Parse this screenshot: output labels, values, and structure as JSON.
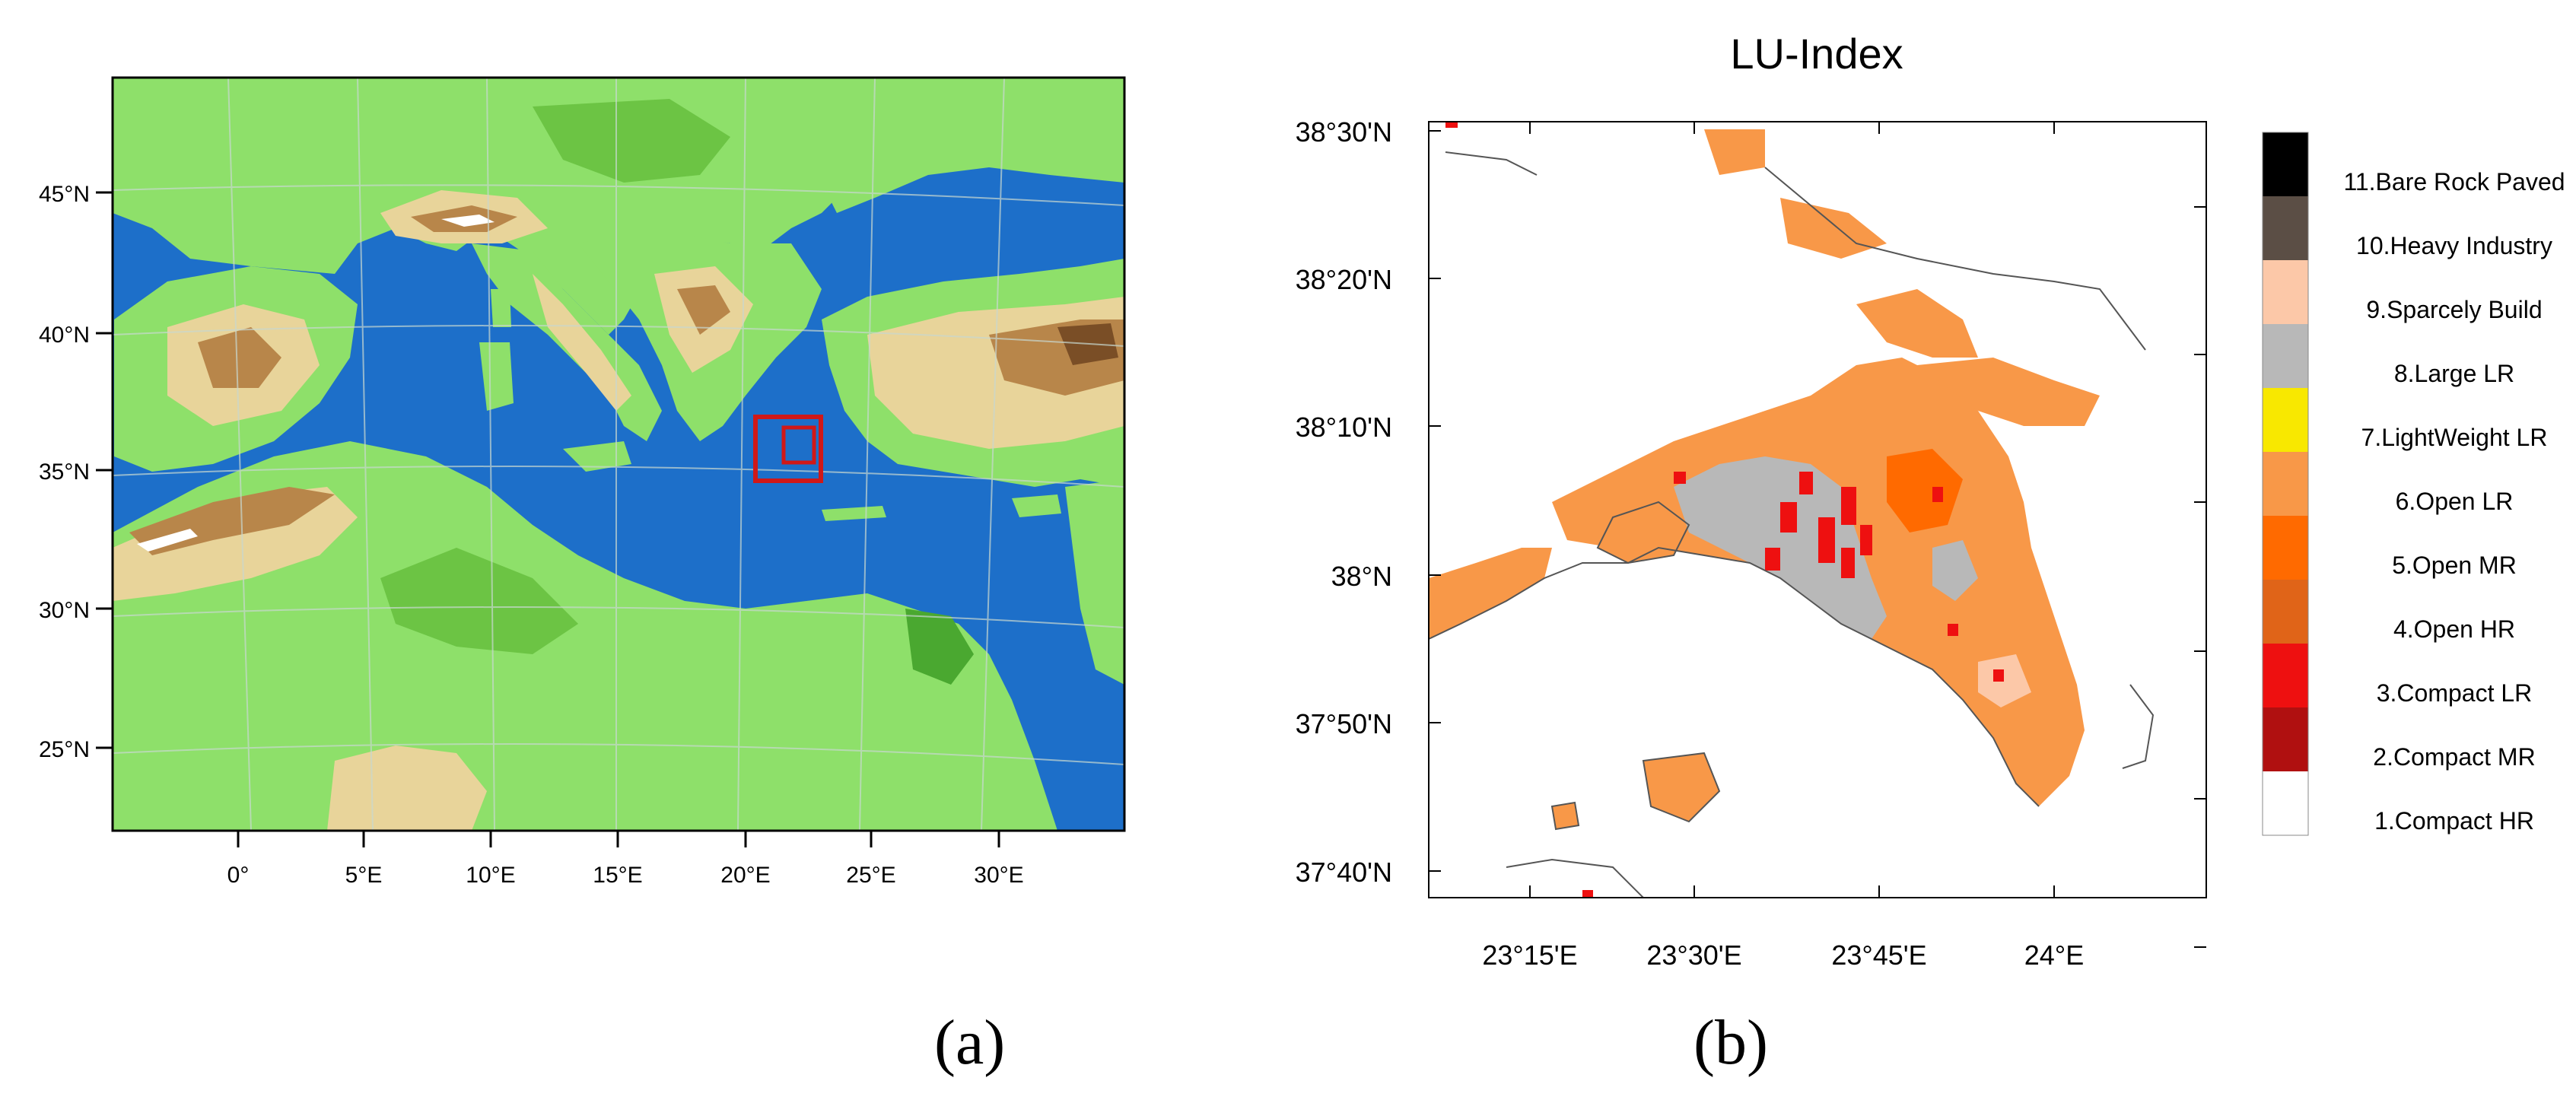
{
  "panel_a": {
    "caption": "(a)",
    "lat_labels": [
      "45°N",
      "40°N",
      "35°N",
      "30°N",
      "25°N"
    ],
    "lon_labels": [
      "0°",
      "5°E",
      "10°E",
      "15°E",
      "20°E",
      "25°E",
      "30°E"
    ],
    "colors": {
      "sea": "#1d6fc9",
      "lowland": "#8ee06a",
      "green": "#6cc444",
      "dark_green": "#4aa830",
      "tan": "#e8d49a",
      "brown": "#b8864a",
      "dark_brown": "#7a4e26",
      "snow": "#ffffff",
      "box": "#d01818"
    }
  },
  "panel_b": {
    "caption": "(b)",
    "title": "LU-Index",
    "lat_labels": [
      "38°30'N",
      "38°20'N",
      "38°10'N",
      "38°N",
      "37°50'N",
      "37°40'N"
    ],
    "lon_labels": [
      "23°15'E",
      "23°30'E",
      "23°45'E",
      "24°E"
    ],
    "legend": [
      {
        "label": "11.Bare Rock Paved",
        "color": "#000000"
      },
      {
        "label": "10.Heavy Industry",
        "color": "#5b4e45"
      },
      {
        "label": "9.Sparcely Build",
        "color": "#fcc8a8"
      },
      {
        "label": "8.Large LR",
        "color": "#b8b8b8"
      },
      {
        "label": "7.LightWeight LR",
        "color": "#f8e800"
      },
      {
        "label": "6.Open LR",
        "color": "#f89848"
      },
      {
        "label": "5.Open MR",
        "color": "#ff6a00"
      },
      {
        "label": "4.Open HR",
        "color": "#e06418"
      },
      {
        "label": "3.Compact LR",
        "color": "#ee1010"
      },
      {
        "label": "2.Compact MR",
        "color": "#b01010"
      },
      {
        "label": "1.Compact HR",
        "color": "#ffffff"
      }
    ]
  }
}
